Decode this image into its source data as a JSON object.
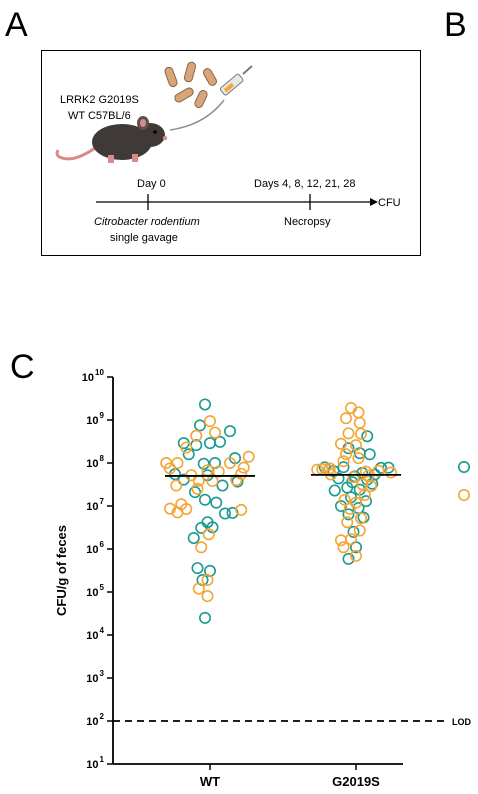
{
  "panels": {
    "a": "A",
    "b": "B",
    "c": "C"
  },
  "schematic": {
    "strain_line1": "LRRK2 G2019S",
    "strain_line2": "WT C57BL/6",
    "day0": "Day 0",
    "days_later": "Days 4, 8, 12, 21, 28",
    "endpoint": "CFU",
    "organism": "Citrobacter rodentium",
    "route": "single gavage",
    "necropsy": "Necropsy"
  },
  "colors": {
    "teal": "#1a9a91",
    "orange": "#f3a535",
    "axis": "#000000",
    "mouse": "#3f3a37"
  },
  "chart_data": {
    "type": "scatter",
    "title": "",
    "ylabel": "CFU/g of feces",
    "yscale": "log",
    "ylim": [
      10.0,
      10000000000.0
    ],
    "yticks": [
      {
        "value": 10,
        "base": "10",
        "exp": "1"
      },
      {
        "value": 100,
        "base": "10",
        "exp": "2"
      },
      {
        "value": 1000,
        "base": "10",
        "exp": "3"
      },
      {
        "value": 10000,
        "base": "10",
        "exp": "4"
      },
      {
        "value": 100000,
        "base": "10",
        "exp": "5"
      },
      {
        "value": 1000000,
        "base": "10",
        "exp": "6"
      },
      {
        "value": 10000000,
        "base": "10",
        "exp": "7"
      },
      {
        "value": 100000000,
        "base": "10",
        "exp": "8"
      },
      {
        "value": 1000000000,
        "base": "10",
        "exp": "9"
      },
      {
        "value": 10000000000,
        "base": "10",
        "exp": "10"
      }
    ],
    "categories": [
      "WT",
      "G2019S"
    ],
    "lod": {
      "value": 100,
      "label": "LOD"
    },
    "medians": [
      50000000.0,
      53000000.0
    ],
    "legend": {
      "position": "right",
      "entries": [
        {
          "color": "teal"
        },
        {
          "color": "orange"
        }
      ]
    },
    "series": [
      {
        "category": "WT",
        "color": "teal",
        "points": [
          [
            -0.04,
            2300000000.0
          ],
          [
            -0.08,
            750000000.0
          ],
          [
            0.16,
            550000000.0
          ],
          [
            -0.21,
            290000000.0
          ],
          [
            -0.11,
            260000000.0
          ],
          [
            0.0,
            290000000.0
          ],
          [
            0.08,
            310000000.0
          ],
          [
            -0.17,
            160000000.0
          ],
          [
            -0.05,
            96000000.0
          ],
          [
            0.04,
            100000000.0
          ],
          [
            0.2,
            130000000.0
          ],
          [
            -0.28,
            55000000.0
          ],
          [
            -0.02,
            52000000.0
          ],
          [
            0.22,
            37000000.0
          ],
          [
            -0.21,
            41000000.0
          ],
          [
            0.1,
            30000000.0
          ],
          [
            -0.12,
            21000000.0
          ],
          [
            -0.04,
            14000000.0
          ],
          [
            0.05,
            12000000.0
          ],
          [
            0.12,
            6700000.0
          ],
          [
            0.18,
            6900000.0
          ],
          [
            -0.02,
            4200000.0
          ],
          [
            -0.07,
            3100000.0
          ],
          [
            0.02,
            3200000.0
          ],
          [
            -0.13,
            1800000.0
          ],
          [
            -0.1,
            360000.0
          ],
          [
            -0.06,
            190000.0
          ],
          [
            0.0,
            310000.0
          ],
          [
            -0.04,
            25000.0
          ]
        ]
      },
      {
        "category": "WT",
        "color": "orange",
        "points": [
          [
            0.0,
            940000000.0
          ],
          [
            0.04,
            510000000.0
          ],
          [
            -0.11,
            430000000.0
          ],
          [
            -0.19,
            230000000.0
          ],
          [
            -0.35,
            100000000.0
          ],
          [
            -0.26,
            100000000.0
          ],
          [
            0.16,
            100000000.0
          ],
          [
            0.31,
            140000000.0
          ],
          [
            0.27,
            78000000.0
          ],
          [
            -0.32,
            75000000.0
          ],
          [
            -0.02,
            68000000.0
          ],
          [
            0.07,
            63000000.0
          ],
          [
            0.25,
            56000000.0
          ],
          [
            -0.15,
            52000000.0
          ],
          [
            -0.09,
            39000000.0
          ],
          [
            0.02,
            38000000.0
          ],
          [
            0.21,
            40000000.0
          ],
          [
            -0.27,
            30000000.0
          ],
          [
            -0.1,
            25000000.0
          ],
          [
            -0.23,
            11000000.0
          ],
          [
            -0.32,
            8700000.0
          ],
          [
            -0.19,
            8500000.0
          ],
          [
            0.25,
            8100000.0
          ],
          [
            -0.26,
            7100000.0
          ],
          [
            -0.01,
            2200000.0
          ],
          [
            -0.07,
            1100000.0
          ],
          [
            -0.02,
            190000.0
          ],
          [
            -0.09,
            120000.0
          ],
          [
            -0.02,
            80000.0
          ]
        ]
      },
      {
        "category": "G2019S",
        "color": "teal",
        "points": [
          [
            0.09,
            420000000.0
          ],
          [
            -0.06,
            220000000.0
          ],
          [
            0.03,
            170000000.0
          ],
          [
            0.11,
            160000000.0
          ],
          [
            -0.25,
            79000000.0
          ],
          [
            -0.1,
            80000000.0
          ],
          [
            0.2,
            77000000.0
          ],
          [
            0.26,
            78000000.0
          ],
          [
            -0.18,
            65000000.0
          ],
          [
            0.05,
            59000000.0
          ],
          [
            -0.01,
            49000000.0
          ],
          [
            0.15,
            54000000.0
          ],
          [
            -0.14,
            44000000.0
          ],
          [
            0.09,
            41000000.0
          ],
          [
            -0.03,
            36000000.0
          ],
          [
            0.13,
            33000000.0
          ],
          [
            -0.07,
            27000000.0
          ],
          [
            0.03,
            24000000.0
          ],
          [
            -0.17,
            23000000.0
          ],
          [
            -0.04,
            16000000.0
          ],
          [
            0.08,
            13000000.0
          ],
          [
            -0.12,
            10000000.0
          ],
          [
            0.02,
            9000000.0
          ],
          [
            -0.06,
            6400000.0
          ],
          [
            0.06,
            5400000.0
          ],
          [
            -0.02,
            2500000.0
          ],
          [
            0.0,
            1100000.0
          ],
          [
            -0.06,
            590000.0
          ]
        ]
      },
      {
        "category": "G2019S",
        "color": "orange",
        "points": [
          [
            -0.04,
            1900000000.0
          ],
          [
            0.02,
            1500000000.0
          ],
          [
            -0.08,
            1100000000.0
          ],
          [
            0.03,
            860000000.0
          ],
          [
            -0.06,
            490000000.0
          ],
          [
            0.04,
            480000000.0
          ],
          [
            -0.12,
            280000000.0
          ],
          [
            0.0,
            260000000.0
          ],
          [
            -0.08,
            160000000.0
          ],
          [
            0.02,
            130000000.0
          ],
          [
            -0.1,
            110000000.0
          ],
          [
            -0.21,
            75000000.0
          ],
          [
            -0.27,
            72000000.0
          ],
          [
            -0.31,
            70000000.0
          ],
          [
            -0.22,
            68000000.0
          ],
          [
            0.08,
            63000000.0
          ],
          [
            0.18,
            66000000.0
          ],
          [
            0.28,
            60000000.0
          ],
          [
            -0.2,
            54000000.0
          ],
          [
            0.1,
            51000000.0
          ],
          [
            -0.02,
            47000000.0
          ],
          [
            0.05,
            32000000.0
          ],
          [
            0.12,
            29000000.0
          ],
          [
            0.07,
            18000000.0
          ],
          [
            -0.09,
            14000000.0
          ],
          [
            0.0,
            12000000.0
          ],
          [
            -0.05,
            8600000.0
          ],
          [
            0.04,
            5200000.0
          ],
          [
            -0.07,
            4200000.0
          ],
          [
            0.03,
            2700000.0
          ],
          [
            -0.04,
            1700000.0
          ],
          [
            -0.12,
            1600000.0
          ],
          [
            -0.1,
            1100000.0
          ],
          [
            0.0,
            690000.0
          ]
        ]
      }
    ]
  }
}
